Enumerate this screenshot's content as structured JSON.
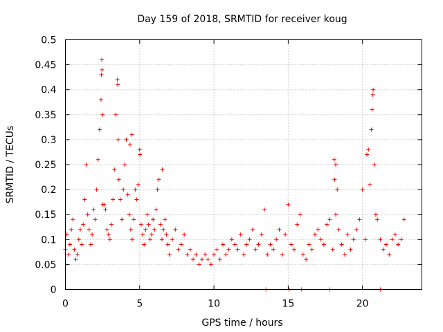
{
  "chart_data": {
    "type": "scatter",
    "title": "Day 159 of 2018, SRMTID for receiver koug",
    "xlabel": "GPS time / hours",
    "ylabel": "SRMTID / TECUs",
    "xlim": [
      0,
      24
    ],
    "ylim": [
      0,
      0.5
    ],
    "xticks": [
      0,
      5,
      10,
      15,
      20
    ],
    "xtick_labels": [
      "0",
      "5",
      "10",
      "15",
      "20"
    ],
    "yticks": [
      0,
      0.05,
      0.1,
      0.15,
      0.2,
      0.25,
      0.3,
      0.35,
      0.4,
      0.45,
      0.5
    ],
    "ytick_labels": [
      "0",
      "0.05",
      "0.1",
      "0.15",
      "0.2",
      "0.25",
      "0.3",
      "0.35",
      "0.4",
      "0.45",
      "0.5"
    ],
    "grid": true,
    "marker": "+",
    "color": "#ff0000",
    "series": [
      {
        "name": "SRMTID",
        "x": [
          0.0,
          0.1,
          0.2,
          0.3,
          0.4,
          0.5,
          0.6,
          0.7,
          0.8,
          0.9,
          1.0,
          1.1,
          1.2,
          1.3,
          1.4,
          1.5,
          1.6,
          1.7,
          1.8,
          1.9,
          2.0,
          2.1,
          2.2,
          2.3,
          2.4,
          2.45,
          2.5,
          2.6,
          2.7,
          2.8,
          2.9,
          3.0,
          3.1,
          3.2,
          3.3,
          3.4,
          3.5,
          3.55,
          3.6,
          3.7,
          3.8,
          3.9,
          4.0,
          4.1,
          4.2,
          4.3,
          4.4,
          4.5,
          4.6,
          4.7,
          4.8,
          4.9,
          5.0,
          5.1,
          5.2,
          5.3,
          5.4,
          5.5,
          5.6,
          5.7,
          5.8,
          5.9,
          6.0,
          6.1,
          6.2,
          6.3,
          6.4,
          6.5,
          6.6,
          6.7,
          6.8,
          6.9,
          7.0,
          7.2,
          7.4,
          7.6,
          7.8,
          8.0,
          8.2,
          8.4,
          8.6,
          8.8,
          9.0,
          9.2,
          9.4,
          9.6,
          9.8,
          10.0,
          10.2,
          10.4,
          10.6,
          10.8,
          11.0,
          11.2,
          11.4,
          11.6,
          11.8,
          12.0,
          12.2,
          12.4,
          12.6,
          12.8,
          13.0,
          13.2,
          13.4,
          13.6,
          13.8,
          14.0,
          14.2,
          14.4,
          14.6,
          14.8,
          15.0,
          15.2,
          15.4,
          15.6,
          15.8,
          16.0,
          16.2,
          16.4,
          16.6,
          16.8,
          17.0,
          17.2,
          17.4,
          17.6,
          17.8,
          18.0,
          18.1,
          18.2,
          18.3,
          18.4,
          18.6,
          18.8,
          19.0,
          19.2,
          19.4,
          19.6,
          19.8,
          20.0,
          20.2,
          20.4,
          20.5,
          20.6,
          20.7,
          20.8,
          20.9,
          21.0,
          21.2,
          21.4,
          21.6,
          21.8,
          22.0,
          22.2,
          22.4,
          22.6,
          22.8,
          2.42,
          2.46,
          2.52,
          3.52,
          4.35,
          4.48,
          5.02,
          6.52,
          18.12,
          18.2,
          20.3,
          20.65,
          20.72,
          13.5,
          15.05,
          15.9,
          17.8,
          21.2
        ],
        "y": [
          0.08,
          0.11,
          0.07,
          0.09,
          0.12,
          0.14,
          0.08,
          0.06,
          0.07,
          0.1,
          0.12,
          0.09,
          0.13,
          0.18,
          0.25,
          0.15,
          0.12,
          0.09,
          0.11,
          0.16,
          0.14,
          0.2,
          0.26,
          0.32,
          0.38,
          0.46,
          0.35,
          0.17,
          0.16,
          0.12,
          0.11,
          0.1,
          0.13,
          0.18,
          0.24,
          0.35,
          0.42,
          0.3,
          0.22,
          0.18,
          0.14,
          0.2,
          0.25,
          0.3,
          0.19,
          0.15,
          0.12,
          0.1,
          0.14,
          0.2,
          0.18,
          0.21,
          0.28,
          0.13,
          0.11,
          0.09,
          0.12,
          0.15,
          0.13,
          0.1,
          0.11,
          0.14,
          0.12,
          0.16,
          0.2,
          0.22,
          0.13,
          0.1,
          0.12,
          0.14,
          0.11,
          0.09,
          0.07,
          0.1,
          0.12,
          0.08,
          0.09,
          0.11,
          0.07,
          0.08,
          0.06,
          0.07,
          0.05,
          0.06,
          0.07,
          0.06,
          0.05,
          0.07,
          0.08,
          0.06,
          0.09,
          0.07,
          0.08,
          0.1,
          0.09,
          0.08,
          0.11,
          0.07,
          0.09,
          0.1,
          0.12,
          0.08,
          0.09,
          0.11,
          0.16,
          0.07,
          0.09,
          0.08,
          0.1,
          0.12,
          0.07,
          0.11,
          0.17,
          0.09,
          0.08,
          0.13,
          0.15,
          0.07,
          0.06,
          0.09,
          0.08,
          0.11,
          0.12,
          0.1,
          0.09,
          0.13,
          0.14,
          0.08,
          0.26,
          0.15,
          0.2,
          0.12,
          0.09,
          0.07,
          0.11,
          0.08,
          0.1,
          0.12,
          0.14,
          0.2,
          0.1,
          0.28,
          0.21,
          0.32,
          0.39,
          0.25,
          0.15,
          0.14,
          0.1,
          0.08,
          0.09,
          0.07,
          0.1,
          0.11,
          0.09,
          0.1,
          0.14,
          0.43,
          0.44,
          0.17,
          0.41,
          0.29,
          0.31,
          0.27,
          0.24,
          0.22,
          0.25,
          0.27,
          0.36,
          0.4,
          0.0,
          0.0,
          0.0,
          0.0,
          0.0
        ]
      }
    ]
  }
}
